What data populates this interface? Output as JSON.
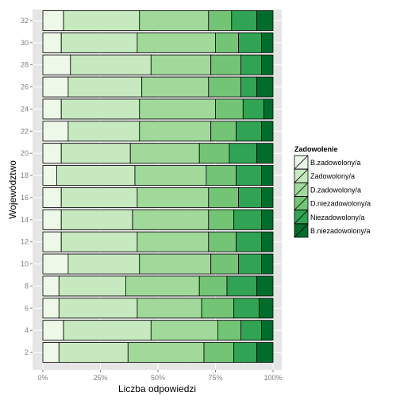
{
  "chart_data": {
    "type": "bar",
    "orientation": "horizontal",
    "stacked": true,
    "normalized": true,
    "xlabel": "Liczba odpowiedzi",
    "ylabel": "Województwo",
    "xlim": [
      0,
      1
    ],
    "x_ticks": [
      "0%",
      "25%",
      "50%",
      "75%",
      "100%"
    ],
    "categories": [
      "2",
      "4",
      "6",
      "8",
      "10",
      "12",
      "14",
      "16",
      "18",
      "20",
      "22",
      "24",
      "26",
      "28",
      "30",
      "32"
    ],
    "grid": true,
    "legend_position": "right",
    "legend_title": "Zadowolenie",
    "colors": [
      "#edf8e9",
      "#c7e9c0",
      "#a1d99b",
      "#74c476",
      "#31a354",
      "#006d2c"
    ],
    "series": [
      {
        "name": "B.zadowolony/a",
        "values": [
          0.07,
          0.09,
          0.07,
          0.07,
          0.11,
          0.08,
          0.08,
          0.08,
          0.06,
          0.08,
          0.11,
          0.08,
          0.11,
          0.12,
          0.08,
          0.09
        ]
      },
      {
        "name": "Zadowolony/a",
        "values": [
          0.3,
          0.38,
          0.34,
          0.29,
          0.31,
          0.33,
          0.31,
          0.33,
          0.34,
          0.3,
          0.31,
          0.34,
          0.32,
          0.35,
          0.33,
          0.33
        ]
      },
      {
        "name": "D.zadowolony/a",
        "values": [
          0.33,
          0.29,
          0.28,
          0.32,
          0.31,
          0.31,
          0.33,
          0.31,
          0.31,
          0.3,
          0.31,
          0.33,
          0.29,
          0.26,
          0.34,
          0.3
        ]
      },
      {
        "name": "D.niezadowolony/a",
        "values": [
          0.13,
          0.1,
          0.14,
          0.12,
          0.12,
          0.12,
          0.11,
          0.13,
          0.13,
          0.13,
          0.11,
          0.12,
          0.14,
          0.13,
          0.1,
          0.1
        ]
      },
      {
        "name": "Niezadowolony/a",
        "values": [
          0.1,
          0.09,
          0.11,
          0.13,
          0.1,
          0.11,
          0.12,
          0.1,
          0.11,
          0.12,
          0.11,
          0.09,
          0.07,
          0.09,
          0.1,
          0.11
        ]
      },
      {
        "name": "B.niezadowolony/a",
        "values": [
          0.07,
          0.05,
          0.06,
          0.07,
          0.05,
          0.05,
          0.05,
          0.05,
          0.05,
          0.07,
          0.05,
          0.04,
          0.07,
          0.05,
          0.05,
          0.07
        ]
      }
    ]
  }
}
